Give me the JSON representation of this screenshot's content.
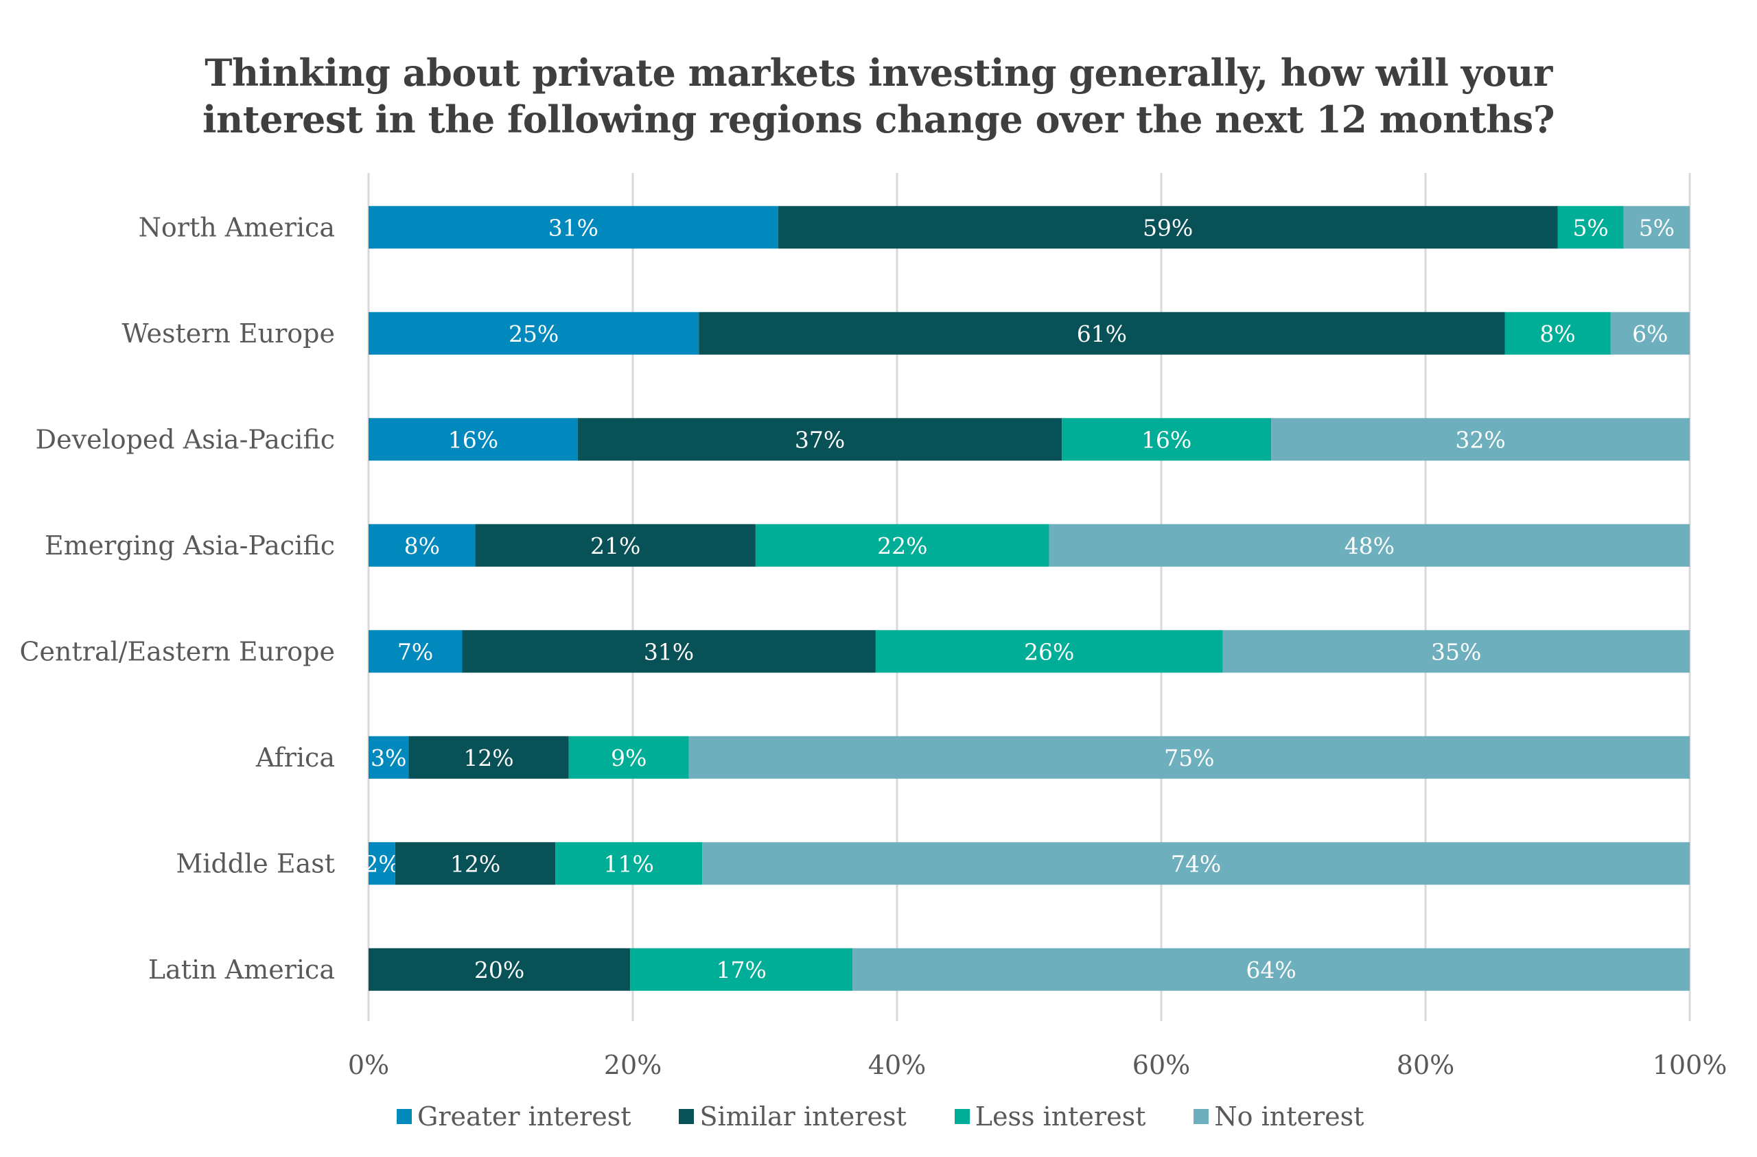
{
  "chart_data": {
    "type": "bar",
    "orientation": "horizontal",
    "stacked": true,
    "percent_stacked": true,
    "title": "Thinking about private markets investing generally, how will your interest in the following regions change over the next 12 months?",
    "title_lines": [
      "Thinking about private markets investing generally, how will your",
      "interest in the following regions change over the next 12 months?"
    ],
    "xlabel": "",
    "ylabel": "",
    "xlim": [
      0,
      100
    ],
    "x_ticks": [
      0,
      20,
      40,
      60,
      80,
      100
    ],
    "x_tick_labels": [
      "0%",
      "20%",
      "40%",
      "60%",
      "80%",
      "100%"
    ],
    "grid": "vertical",
    "legend_position": "bottom",
    "categories": [
      "North America",
      "Western Europe",
      "Developed Asia-Pacific",
      "Emerging Asia-Pacific",
      "Central/Eastern Europe",
      "Africa",
      "Middle East",
      "Latin America"
    ],
    "series": [
      {
        "name": "Greater interest",
        "color": "#0189bd",
        "values": [
          31,
          25,
          16,
          8,
          7,
          3,
          2,
          0
        ]
      },
      {
        "name": "Similar interest",
        "color": "#085157",
        "values": [
          59,
          61,
          37,
          21,
          31,
          12,
          12,
          20
        ]
      },
      {
        "name": "Less interest",
        "color": "#00ad96",
        "values": [
          5,
          8,
          16,
          22,
          26,
          9,
          11,
          17
        ]
      },
      {
        "name": "No interest",
        "color": "#6eafbd",
        "values": [
          5,
          6,
          32,
          48,
          35,
          75,
          74,
          64
        ]
      }
    ],
    "data_label_format": "{v}%",
    "data_label_color": "#ffffff"
  }
}
